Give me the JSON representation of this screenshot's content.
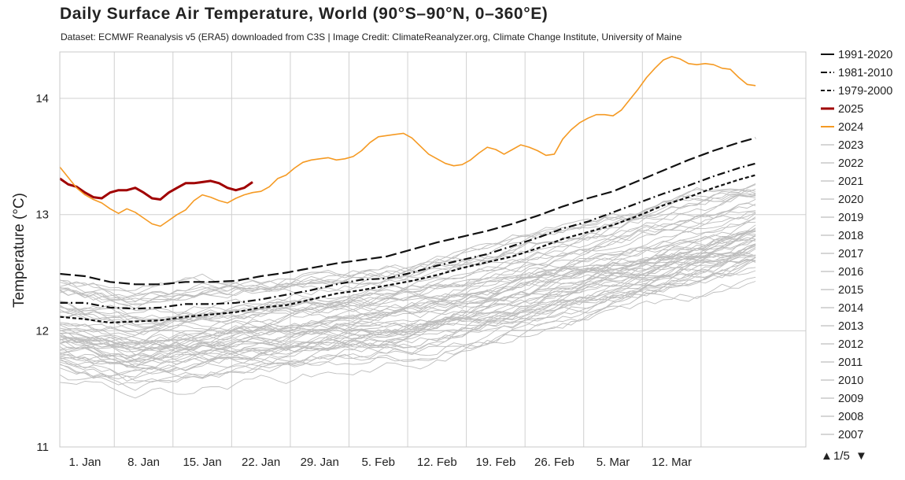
{
  "chart_data": {
    "type": "line",
    "title": "Daily Surface Air Temperature, World (90°S–90°N, 0–360°E)",
    "subtitle": "Dataset: ECMWF Reanalysis v5 (ERA5) downloaded from C3S | Image Credit: ClimateReanalyzer.org, Climate Change Institute, University of Maine",
    "ylabel": "Temperature (°C)",
    "xlabel": "",
    "x_range_days": [
      -3,
      86
    ],
    "ylim": [
      11,
      14.4
    ],
    "yticks": [
      11,
      12,
      13,
      14
    ],
    "xticks": [
      {
        "label": "1. Jan",
        "day": 0
      },
      {
        "label": "8. Jan",
        "day": 7
      },
      {
        "label": "15. Jan",
        "day": 14
      },
      {
        "label": "22. Jan",
        "day": 21
      },
      {
        "label": "29. Jan",
        "day": 28
      },
      {
        "label": "5. Feb",
        "day": 35
      },
      {
        "label": "12. Feb",
        "day": 42
      },
      {
        "label": "19. Feb",
        "day": 49
      },
      {
        "label": "26. Feb",
        "day": 56
      },
      {
        "label": "5. Mar",
        "day": 63
      },
      {
        "label": "12. Mar",
        "day": 70
      }
    ],
    "grid": true,
    "legend_position": "right",
    "legend_pager": {
      "label": "1/5",
      "up_symbol": "▲",
      "down_symbol": "▼"
    },
    "series": [
      {
        "name": "1991-2020",
        "style": "long-dash",
        "color": "#111111",
        "points": [
          [
            -3,
            12.49
          ],
          [
            0,
            12.47
          ],
          [
            3,
            12.42
          ],
          [
            6,
            12.4
          ],
          [
            9,
            12.4
          ],
          [
            12,
            12.42
          ],
          [
            15,
            12.42
          ],
          [
            18,
            12.43
          ],
          [
            21,
            12.47
          ],
          [
            24,
            12.5
          ],
          [
            27,
            12.54
          ],
          [
            30,
            12.58
          ],
          [
            33,
            12.61
          ],
          [
            36,
            12.64
          ],
          [
            39,
            12.7
          ],
          [
            42,
            12.76
          ],
          [
            45,
            12.81
          ],
          [
            48,
            12.86
          ],
          [
            51,
            12.92
          ],
          [
            54,
            12.99
          ],
          [
            57,
            13.07
          ],
          [
            60,
            13.14
          ],
          [
            63,
            13.2
          ],
          [
            66,
            13.29
          ],
          [
            69,
            13.38
          ],
          [
            72,
            13.47
          ],
          [
            75,
            13.55
          ],
          [
            78,
            13.62
          ],
          [
            80,
            13.66
          ]
        ]
      },
      {
        "name": "1981-2010",
        "style": "dash-dot",
        "color": "#111111",
        "points": [
          [
            -3,
            12.24
          ],
          [
            0,
            12.24
          ],
          [
            3,
            12.2
          ],
          [
            6,
            12.19
          ],
          [
            9,
            12.2
          ],
          [
            12,
            12.23
          ],
          [
            15,
            12.23
          ],
          [
            18,
            12.24
          ],
          [
            21,
            12.27
          ],
          [
            24,
            12.31
          ],
          [
            27,
            12.35
          ],
          [
            30,
            12.4
          ],
          [
            33,
            12.44
          ],
          [
            36,
            12.45
          ],
          [
            39,
            12.5
          ],
          [
            42,
            12.56
          ],
          [
            45,
            12.61
          ],
          [
            48,
            12.66
          ],
          [
            51,
            12.73
          ],
          [
            54,
            12.8
          ],
          [
            57,
            12.88
          ],
          [
            60,
            12.94
          ],
          [
            63,
            13.02
          ],
          [
            66,
            13.1
          ],
          [
            69,
            13.18
          ],
          [
            72,
            13.25
          ],
          [
            75,
            13.33
          ],
          [
            78,
            13.4
          ],
          [
            80,
            13.44
          ]
        ]
      },
      {
        "name": "1979-2000",
        "style": "dash",
        "color": "#111111",
        "points": [
          [
            -3,
            12.12
          ],
          [
            0,
            12.1
          ],
          [
            3,
            12.07
          ],
          [
            6,
            12.08
          ],
          [
            9,
            12.09
          ],
          [
            12,
            12.12
          ],
          [
            15,
            12.14
          ],
          [
            18,
            12.16
          ],
          [
            21,
            12.2
          ],
          [
            24,
            12.22
          ],
          [
            27,
            12.27
          ],
          [
            30,
            12.32
          ],
          [
            33,
            12.35
          ],
          [
            36,
            12.39
          ],
          [
            39,
            12.43
          ],
          [
            42,
            12.48
          ],
          [
            45,
            12.54
          ],
          [
            48,
            12.59
          ],
          [
            51,
            12.64
          ],
          [
            54,
            12.71
          ],
          [
            57,
            12.79
          ],
          [
            60,
            12.85
          ],
          [
            63,
            12.91
          ],
          [
            66,
            12.99
          ],
          [
            69,
            13.08
          ],
          [
            72,
            13.15
          ],
          [
            75,
            13.23
          ],
          [
            78,
            13.3
          ],
          [
            80,
            13.34
          ]
        ]
      },
      {
        "name": "2025",
        "style": "solid-thick",
        "color": "#a00000",
        "points": [
          [
            -3,
            13.31
          ],
          [
            -2,
            13.26
          ],
          [
            -1,
            13.24
          ],
          [
            0,
            13.19
          ],
          [
            1,
            13.15
          ],
          [
            2,
            13.14
          ],
          [
            3,
            13.19
          ],
          [
            4,
            13.21
          ],
          [
            5,
            13.21
          ],
          [
            6,
            13.23
          ],
          [
            7,
            13.19
          ],
          [
            8,
            13.14
          ],
          [
            9,
            13.13
          ],
          [
            10,
            13.19
          ],
          [
            11,
            13.23
          ],
          [
            12,
            13.27
          ],
          [
            13,
            13.27
          ],
          [
            14,
            13.28
          ],
          [
            15,
            13.29
          ],
          [
            16,
            13.27
          ],
          [
            17,
            13.23
          ],
          [
            18,
            13.21
          ],
          [
            19,
            13.23
          ],
          [
            20,
            13.28
          ]
        ]
      },
      {
        "name": "2024",
        "style": "solid",
        "color": "#f59a23",
        "points": [
          [
            -3,
            13.41
          ],
          [
            -2,
            13.32
          ],
          [
            -1,
            13.23
          ],
          [
            0,
            13.17
          ],
          [
            1,
            13.13
          ],
          [
            2,
            13.1
          ],
          [
            3,
            13.05
          ],
          [
            4,
            13.01
          ],
          [
            5,
            13.05
          ],
          [
            6,
            13.02
          ],
          [
            7,
            12.97
          ],
          [
            8,
            12.92
          ],
          [
            9,
            12.9
          ],
          [
            10,
            12.95
          ],
          [
            11,
            13.0
          ],
          [
            12,
            13.04
          ],
          [
            13,
            13.12
          ],
          [
            14,
            13.17
          ],
          [
            15,
            13.15
          ],
          [
            16,
            13.12
          ],
          [
            17,
            13.1
          ],
          [
            18,
            13.14
          ],
          [
            19,
            13.17
          ],
          [
            20,
            13.19
          ],
          [
            21,
            13.2
          ],
          [
            22,
            13.24
          ],
          [
            23,
            13.31
          ],
          [
            24,
            13.34
          ],
          [
            25,
            13.4
          ],
          [
            26,
            13.45
          ],
          [
            27,
            13.47
          ],
          [
            28,
            13.48
          ],
          [
            29,
            13.49
          ],
          [
            30,
            13.47
          ],
          [
            31,
            13.48
          ],
          [
            32,
            13.5
          ],
          [
            33,
            13.55
          ],
          [
            34,
            13.62
          ],
          [
            35,
            13.67
          ],
          [
            36,
            13.68
          ],
          [
            37,
            13.69
          ],
          [
            38,
            13.7
          ],
          [
            39,
            13.66
          ],
          [
            40,
            13.59
          ],
          [
            41,
            13.52
          ],
          [
            42,
            13.48
          ],
          [
            43,
            13.44
          ],
          [
            44,
            13.42
          ],
          [
            45,
            13.43
          ],
          [
            46,
            13.47
          ],
          [
            47,
            13.53
          ],
          [
            48,
            13.58
          ],
          [
            49,
            13.56
          ],
          [
            50,
            13.52
          ],
          [
            51,
            13.56
          ],
          [
            52,
            13.6
          ],
          [
            53,
            13.58
          ],
          [
            54,
            13.55
          ],
          [
            55,
            13.51
          ],
          [
            56,
            13.52
          ],
          [
            57,
            13.65
          ],
          [
            58,
            13.73
          ],
          [
            59,
            13.79
          ],
          [
            60,
            13.83
          ],
          [
            61,
            13.86
          ],
          [
            62,
            13.86
          ],
          [
            63,
            13.85
          ],
          [
            64,
            13.9
          ],
          [
            65,
            13.99
          ],
          [
            66,
            14.08
          ],
          [
            67,
            14.18
          ],
          [
            68,
            14.26
          ],
          [
            69,
            14.33
          ],
          [
            70,
            14.36
          ],
          [
            71,
            14.34
          ],
          [
            72,
            14.3
          ],
          [
            73,
            14.29
          ],
          [
            74,
            14.3
          ],
          [
            75,
            14.29
          ],
          [
            76,
            14.26
          ],
          [
            77,
            14.25
          ],
          [
            78,
            14.18
          ],
          [
            79,
            14.12
          ],
          [
            80,
            14.11
          ]
        ]
      }
    ],
    "legend": [
      "1991-2020",
      "1981-2010",
      "1979-2000",
      "2025",
      "2024",
      "2023",
      "2022",
      "2021",
      "2020",
      "2019",
      "2018",
      "2017",
      "2016",
      "2015",
      "2014",
      "2013",
      "2012",
      "2011",
      "2010",
      "2009",
      "2008",
      "2007"
    ],
    "background_years_color": "#bdbdbd"
  }
}
